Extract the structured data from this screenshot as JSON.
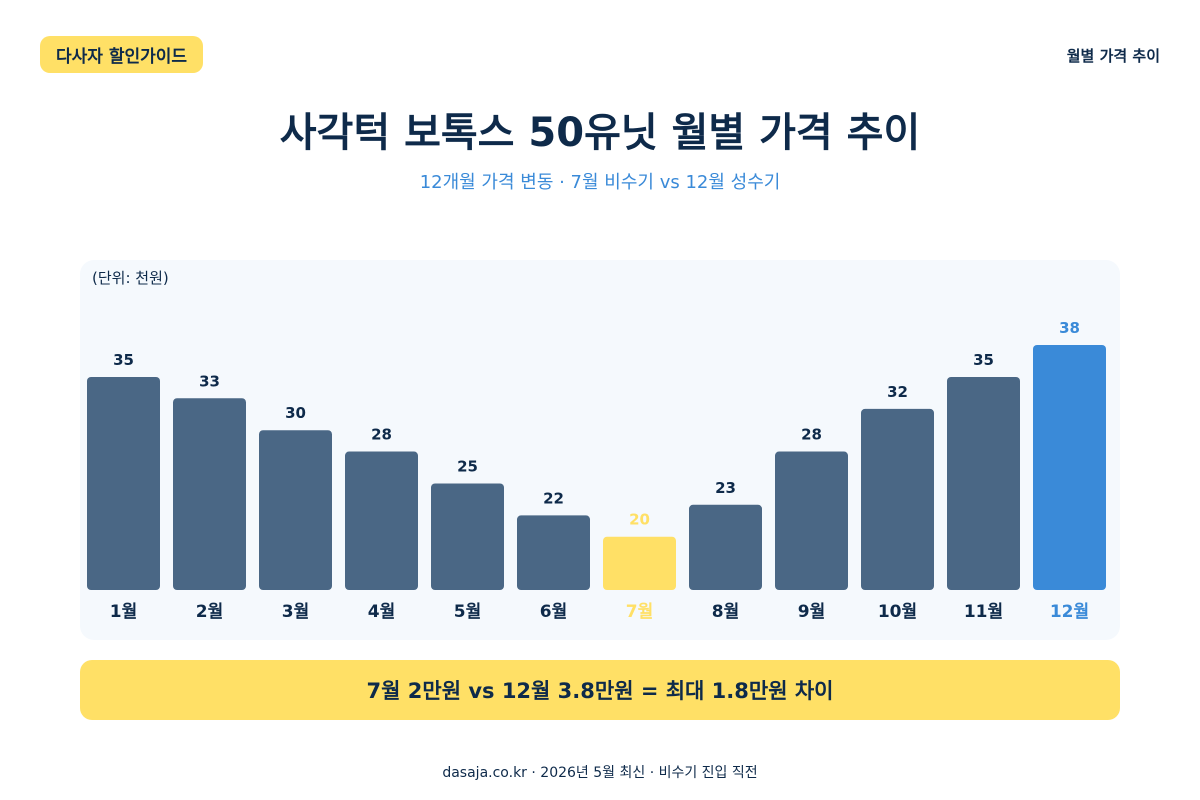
{
  "header": {
    "badge": "다사자 할인가이드",
    "top_right": "월별 가격 추이",
    "title": "사각턱 보톡스 50유닛 월별 가격 추이",
    "subtitle": "12개월 가격 변동 · 7월 비수기 vs 12월 성수기"
  },
  "colors": {
    "default_bar": "#4a6785",
    "low_highlight": "#ffe066",
    "high_highlight": "#3a8ad8",
    "dark_text": "#0e2a4a"
  },
  "chart_data": {
    "type": "bar",
    "unit_label": "(단위: 천원)",
    "categories": [
      "1월",
      "2월",
      "3월",
      "4월",
      "5월",
      "6월",
      "7월",
      "8월",
      "9월",
      "10월",
      "11월",
      "12월"
    ],
    "values": [
      35,
      33,
      30,
      28,
      25,
      22,
      20,
      23,
      28,
      32,
      35,
      38
    ],
    "highlight_low_index": 6,
    "highlight_high_index": 11,
    "ylim": [
      15,
      38
    ],
    "grid": false,
    "legend": "none"
  },
  "summary": "7월 2만원 vs 12월 3.8만원 = 최대 1.8만원 차이",
  "footer": "dasaja.co.kr · 2026년 5월 최신 · 비수기 진입 직전"
}
